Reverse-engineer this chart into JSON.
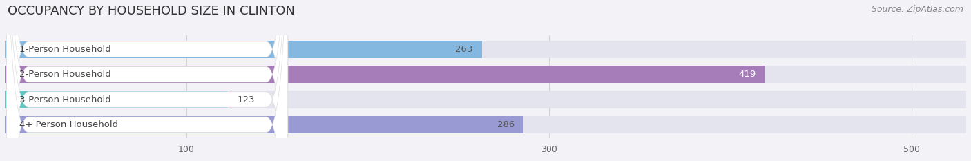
{
  "title": "OCCUPANCY BY HOUSEHOLD SIZE IN CLINTON",
  "source": "Source: ZipAtlas.com",
  "categories": [
    "1-Person Household",
    "2-Person Household",
    "3-Person Household",
    "4+ Person Household"
  ],
  "values": [
    263,
    419,
    123,
    286
  ],
  "bar_colors": [
    "#85b8e0",
    "#a67db8",
    "#5ec8c0",
    "#9999d4"
  ],
  "value_colors": [
    "#555555",
    "#ffffff",
    "#555555",
    "#555555"
  ],
  "xlim": [
    0,
    530
  ],
  "xticks": [
    100,
    300,
    500
  ],
  "background_color": "#f2f2f7",
  "bar_bg_color": "#e4e4ee",
  "title_fontsize": 13,
  "source_fontsize": 9,
  "label_fontsize": 9.5,
  "value_fontsize": 9.5,
  "tick_fontsize": 9
}
